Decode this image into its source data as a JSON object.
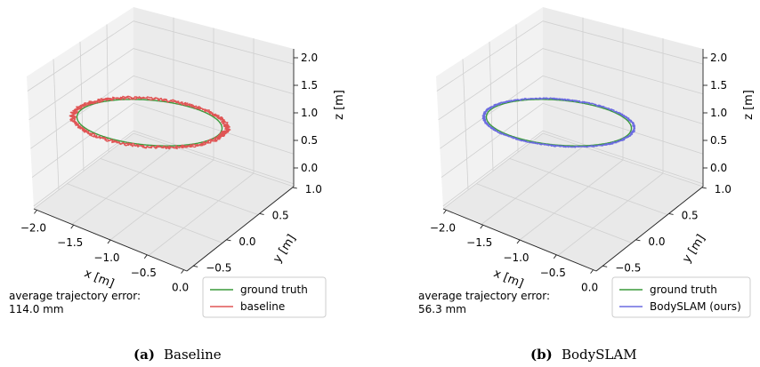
{
  "chart_data": [
    {
      "type": "line",
      "projection": "3d",
      "caption_label": "(a)",
      "caption_title": "Baseline",
      "xlabel": "x [m]",
      "ylabel": "y [m]",
      "zlabel": "z [m]",
      "xticks": [
        "−2.0",
        "−1.5",
        "−1.0",
        "−0.5",
        "0.0"
      ],
      "yticks": [
        "−0.5",
        "0.0",
        "0.5",
        "1.0"
      ],
      "zticks": [
        "0.0",
        "0.5",
        "1.0",
        "1.5",
        "2.0"
      ],
      "xlim": [
        -2.0,
        0.0
      ],
      "ylim": [
        -0.5,
        1.0
      ],
      "zlim": [
        0.0,
        2.0
      ],
      "grid": true,
      "legend_position": "lower-right, outside axes",
      "series": [
        {
          "name": "ground truth",
          "color": "#3a9a3a",
          "shape": "ellipse",
          "center": {
            "x": -1.0,
            "y": 0.25,
            "z": 1.0
          },
          "radius": {
            "x": 0.85,
            "y": 0.65
          },
          "noise": 0.0
        },
        {
          "name": "baseline",
          "color": "#e05555",
          "shape": "ellipse",
          "center": {
            "x": -1.0,
            "y": 0.25,
            "z": 1.0
          },
          "radius": {
            "x": 0.9,
            "y": 0.7
          },
          "noise": 0.09
        }
      ],
      "stats_label": "average trajectory error:",
      "stats_value": "114.0 mm"
    },
    {
      "type": "line",
      "projection": "3d",
      "caption_label": "(b)",
      "caption_title": "BodySLAM",
      "xlabel": "x [m]",
      "ylabel": "y [m]",
      "zlabel": "z [m]",
      "xticks": [
        "−2.0",
        "−1.5",
        "−1.0",
        "−0.5",
        "0.0"
      ],
      "yticks": [
        "−0.5",
        "0.0",
        "0.5",
        "1.0"
      ],
      "zticks": [
        "0.0",
        "0.5",
        "1.0",
        "1.5",
        "2.0"
      ],
      "xlim": [
        -2.0,
        0.0
      ],
      "ylim": [
        -0.5,
        1.0
      ],
      "zlim": [
        0.0,
        2.0
      ],
      "grid": true,
      "legend_position": "lower-right, outside axes",
      "series": [
        {
          "name": "ground truth",
          "color": "#3a9a3a",
          "shape": "ellipse",
          "center": {
            "x": -1.0,
            "y": 0.25,
            "z": 1.0
          },
          "radius": {
            "x": 0.85,
            "y": 0.65
          },
          "noise": 0.0
        },
        {
          "name": "BodySLAM (ours)",
          "color": "#6b6be0",
          "shape": "ellipse",
          "center": {
            "x": -1.0,
            "y": 0.25,
            "z": 1.0
          },
          "radius": {
            "x": 0.88,
            "y": 0.68
          },
          "noise": 0.04
        }
      ],
      "stats_label": "average trajectory error:",
      "stats_value": "56.3 mm"
    }
  ]
}
